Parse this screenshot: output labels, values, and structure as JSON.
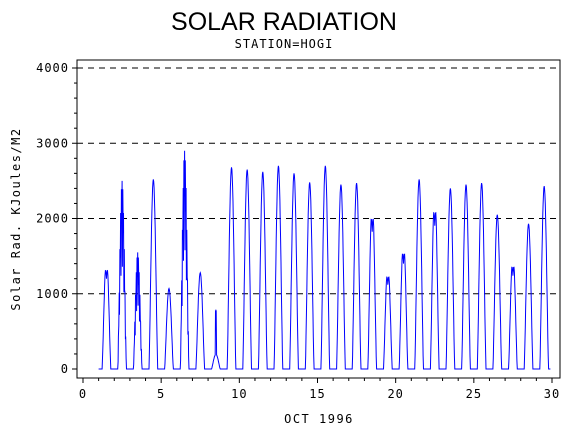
{
  "chart_data": {
    "type": "line",
    "title": "SOLAR RADIATION",
    "subtitle": "STATION=HOGI",
    "xlabel": "OCT 1996",
    "ylabel": "Solar Rad. KJoules/M2",
    "xlim": [
      0,
      30
    ],
    "ylim": [
      0,
      4000
    ],
    "xticks": [
      0,
      5,
      10,
      15,
      20,
      25,
      30
    ],
    "yticks": [
      0,
      1000,
      2000,
      3000,
      4000
    ],
    "grid": "horizontal dashed at y ticks",
    "line_color": "#0000ff",
    "daily_peaks": [
      {
        "day": 1,
        "peak": 1500,
        "shape": "dip"
      },
      {
        "day": 2,
        "peak": 2500,
        "shape": "spiky"
      },
      {
        "day": 3,
        "peak": 1550,
        "shape": "spiky"
      },
      {
        "day": 4,
        "peak": 2520,
        "shape": "smooth"
      },
      {
        "day": 5,
        "peak": 1070,
        "shape": "smooth"
      },
      {
        "day": 6,
        "peak": 2900,
        "shape": "spiky"
      },
      {
        "day": 7,
        "peak": 1280,
        "shape": "smooth"
      },
      {
        "day": 8,
        "peak": 780,
        "shape": "spike"
      },
      {
        "day": 9,
        "peak": 2680,
        "shape": "smooth"
      },
      {
        "day": 10,
        "peak": 2650,
        "shape": "smooth"
      },
      {
        "day": 11,
        "peak": 2620,
        "shape": "smooth"
      },
      {
        "day": 12,
        "peak": 2700,
        "shape": "smooth"
      },
      {
        "day": 13,
        "peak": 2600,
        "shape": "smooth"
      },
      {
        "day": 14,
        "peak": 2480,
        "shape": "smooth"
      },
      {
        "day": 15,
        "peak": 2700,
        "shape": "smooth"
      },
      {
        "day": 16,
        "peak": 2450,
        "shape": "smooth"
      },
      {
        "day": 17,
        "peak": 2470,
        "shape": "smooth"
      },
      {
        "day": 18,
        "peak": 2280,
        "shape": "dip"
      },
      {
        "day": 19,
        "peak": 1400,
        "shape": "dip"
      },
      {
        "day": 20,
        "peak": 1750,
        "shape": "dip"
      },
      {
        "day": 21,
        "peak": 2520,
        "shape": "smooth"
      },
      {
        "day": 22,
        "peak": 2380,
        "shape": "dip"
      },
      {
        "day": 23,
        "peak": 2400,
        "shape": "smooth"
      },
      {
        "day": 24,
        "peak": 2450,
        "shape": "smooth"
      },
      {
        "day": 25,
        "peak": 2470,
        "shape": "smooth"
      },
      {
        "day": 26,
        "peak": 2050,
        "shape": "smooth"
      },
      {
        "day": 27,
        "peak": 1550,
        "shape": "dip"
      },
      {
        "day": 28,
        "peak": 1930,
        "shape": "smooth"
      },
      {
        "day": 29,
        "peak": 2430,
        "shape": "smooth"
      }
    ]
  }
}
